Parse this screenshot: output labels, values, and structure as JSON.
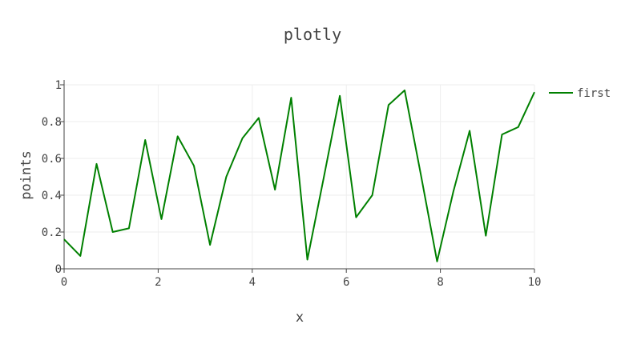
{
  "chart_data": {
    "type": "line",
    "title": "plotly",
    "xlabel": "x",
    "ylabel": "points",
    "xlim": [
      0,
      10
    ],
    "ylim": [
      0,
      1
    ],
    "x_ticks": [
      0,
      2,
      4,
      6,
      8,
      10
    ],
    "x_tick_labels": [
      "0",
      "2",
      "4",
      "6",
      "8",
      "10"
    ],
    "y_ticks": [
      0,
      0.2,
      0.4,
      0.6,
      0.8,
      1
    ],
    "y_tick_labels": [
      "0",
      "0.2",
      "0.4",
      "0.6",
      "0.8",
      "1"
    ],
    "grid": true,
    "legend_position": "top-right",
    "series": [
      {
        "name": "first",
        "color": "#008000",
        "x": [
          0,
          0.345,
          0.69,
          1.034,
          1.379,
          1.724,
          2.069,
          2.414,
          2.759,
          3.103,
          3.448,
          3.793,
          4.138,
          4.483,
          4.828,
          5.172,
          5.517,
          5.862,
          6.207,
          6.552,
          6.897,
          7.241,
          7.586,
          7.931,
          8.276,
          8.621,
          8.966,
          9.31,
          9.655,
          10
        ],
        "y": [
          0.16,
          0.07,
          0.57,
          0.2,
          0.22,
          0.7,
          0.27,
          0.72,
          0.56,
          0.13,
          0.5,
          0.71,
          0.82,
          0.43,
          0.93,
          0.05,
          0.49,
          0.94,
          0.28,
          0.4,
          0.89,
          0.97,
          0.51,
          0.04,
          0.42,
          0.75,
          0.18,
          0.73,
          0.77,
          0.96
        ]
      }
    ]
  }
}
